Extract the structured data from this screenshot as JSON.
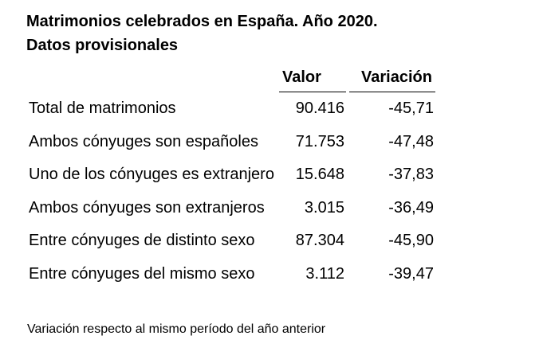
{
  "title": {
    "line1": "Matrimonios celebrados en España. Año 2020.",
    "line2": "Datos provisionales"
  },
  "table": {
    "headers": {
      "valor": "Valor",
      "variacion": "Variación"
    },
    "rows": [
      {
        "label": "Total de matrimonios",
        "valor": "90.416",
        "variacion": "-45,71"
      },
      {
        "label": "Ambos cónyuges son españoles",
        "valor": "71.753",
        "variacion": "-47,48"
      },
      {
        "label": "Uno de los cónyuges es extranjero",
        "valor": "15.648",
        "variacion": "-37,83"
      },
      {
        "label": "Ambos cónyuges son extranjeros",
        "valor": "3.015",
        "variacion": "-36,49"
      },
      {
        "label": "Entre cónyuges de distinto sexo",
        "valor": "87.304",
        "variacion": "-45,90"
      },
      {
        "label": "Entre cónyuges del mismo sexo",
        "valor": "3.112",
        "variacion": "-39,47"
      }
    ]
  },
  "footnote": "Variación respecto al mismo período del año anterior"
}
